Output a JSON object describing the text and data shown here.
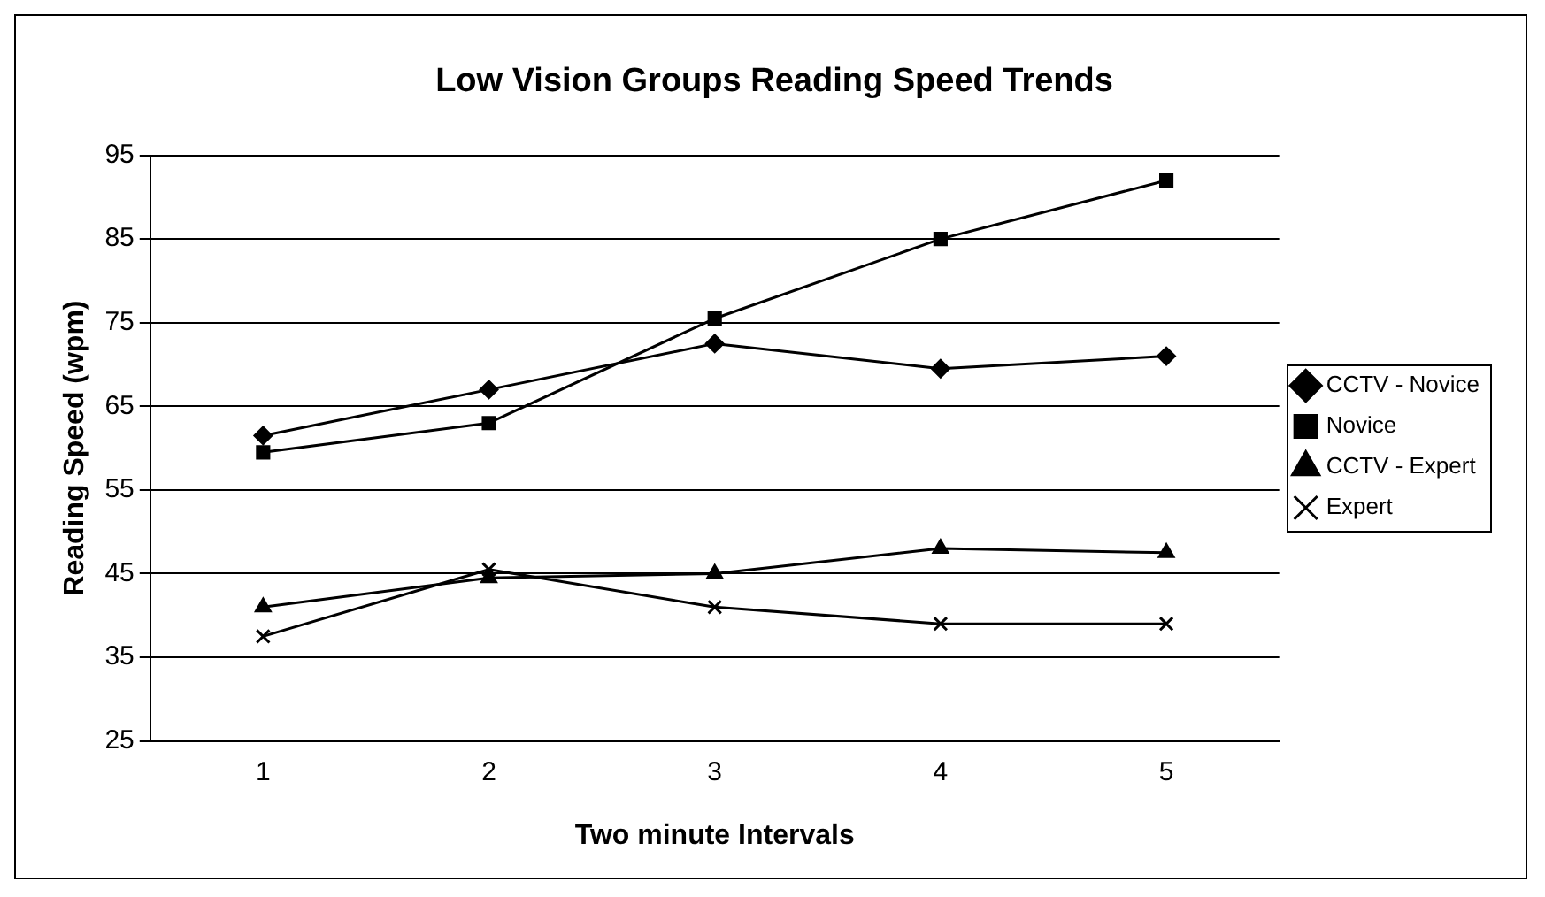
{
  "chart_data": {
    "type": "line",
    "title": "Low Vision Groups Reading Speed Trends",
    "xlabel": "Two minute Intervals",
    "ylabel": "Reading Speed (wpm)",
    "categories": [
      "1",
      "2",
      "3",
      "4",
      "5"
    ],
    "series": [
      {
        "name": "CCTV - Novice",
        "color": "#000000",
        "marker": "diamond",
        "values": [
          61.5,
          67,
          72.5,
          69.5,
          71
        ]
      },
      {
        "name": "Novice",
        "color": "#000000",
        "marker": "square",
        "values": [
          59.5,
          63,
          75.5,
          85,
          92
        ]
      },
      {
        "name": "CCTV - Expert",
        "color": "#000000",
        "marker": "triangle",
        "values": [
          41,
          44.5,
          45,
          48,
          47.5
        ]
      },
      {
        "name": "Expert",
        "color": "#000000",
        "marker": "cross",
        "values": [
          37.5,
          45.5,
          41,
          39,
          39
        ]
      }
    ],
    "ylim": [
      25,
      95
    ],
    "yticks": [
      25,
      35,
      45,
      55,
      65,
      75,
      85,
      95
    ],
    "grid": "y",
    "legend": "right",
    "line_style": "solid"
  }
}
